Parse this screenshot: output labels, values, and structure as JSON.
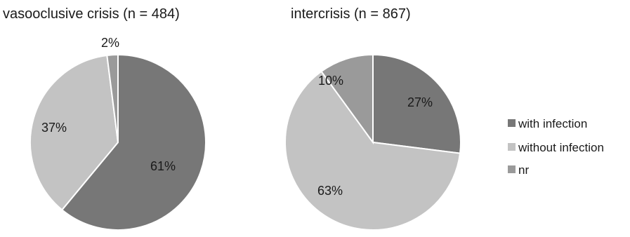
{
  "chart_data": [
    {
      "type": "pie",
      "title": "vasooclusive crisis (n = 484)",
      "categories": [
        "with infection",
        "without infection",
        "nr"
      ],
      "values": [
        61,
        37,
        2
      ],
      "labels": [
        "61%",
        "37%",
        "2%"
      ]
    },
    {
      "type": "pie",
      "title": "intercrisis (n = 867)",
      "categories": [
        "with infection",
        "without infection",
        "nr"
      ],
      "values": [
        27,
        63,
        10
      ],
      "labels": [
        "27%",
        "63%",
        "10%"
      ]
    }
  ],
  "legend": {
    "placement": "right",
    "items": [
      {
        "label": "with infection",
        "color": "#777777"
      },
      {
        "label": "without infection",
        "color": "#c3c3c3"
      },
      {
        "label": "nr",
        "color": "#9a9a9a"
      }
    ]
  },
  "colors": {
    "with infection": "#777777",
    "without infection": "#c3c3c3",
    "nr": "#9a9a9a",
    "slice_border": "#ffffff"
  }
}
